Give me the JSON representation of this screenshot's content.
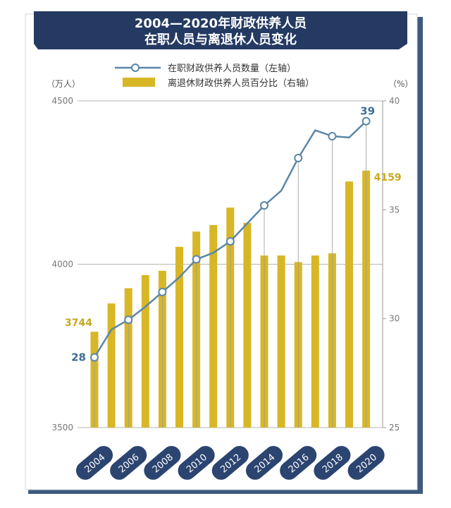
{
  "chart_data": {
    "type": "bar+line",
    "title": [
      "2004—2020年财政供养人员",
      "在职人员与离退休人员变化"
    ],
    "legend": {
      "line_label": "在职财政供养人员数量（左轴）",
      "bar_label": "离退休财政供养人员百分比（右轴）",
      "placement": "top-center"
    },
    "left_axis": {
      "unit": "（万人）",
      "range": [
        3500,
        4500
      ],
      "ticks": [
        "3500",
        "4000",
        "4500"
      ]
    },
    "right_axis": {
      "unit": "（%）",
      "range": [
        25,
        40
      ],
      "ticks": [
        "25",
        "30",
        "35",
        "40"
      ]
    },
    "x_labels": [
      "2004",
      "2006",
      "2008",
      "2010",
      "2012",
      "2014",
      "2016",
      "2018",
      "2020"
    ],
    "years": [
      2004,
      2005,
      2006,
      2007,
      2008,
      2009,
      2010,
      2011,
      2012,
      2013,
      2014,
      2015,
      2016,
      2017,
      2018,
      2019,
      2020
    ],
    "line_values": [
      3715,
      3800,
      3830,
      3870,
      3915,
      3960,
      4015,
      4035,
      4070,
      4125,
      4180,
      4225,
      4325,
      4410,
      4392,
      4388,
      4438
    ],
    "bar_values": [
      29.4,
      30.7,
      31.4,
      32.0,
      32.2,
      33.3,
      34.0,
      34.3,
      35.1,
      34.4,
      32.9,
      32.9,
      32.6,
      32.9,
      33.0,
      36.3,
      36.8
    ],
    "annotations": {
      "line_first": "28",
      "line_last": "39",
      "bar_first": "3744",
      "bar_last": "4159"
    },
    "marker_years": [
      2004,
      2006,
      2008,
      2010,
      2012,
      2014,
      2016,
      2018,
      2020
    ],
    "grid": "horizontal",
    "colors": {
      "line": "#5b86a8",
      "bar": "#d8b726",
      "banner": "#243a62",
      "pill": "#2b4470",
      "axis": "#888888",
      "frame_shadow": "#3d5a7c",
      "line_label_text": "#3f6d96",
      "bar_label_text": "#c9a81c"
    }
  }
}
